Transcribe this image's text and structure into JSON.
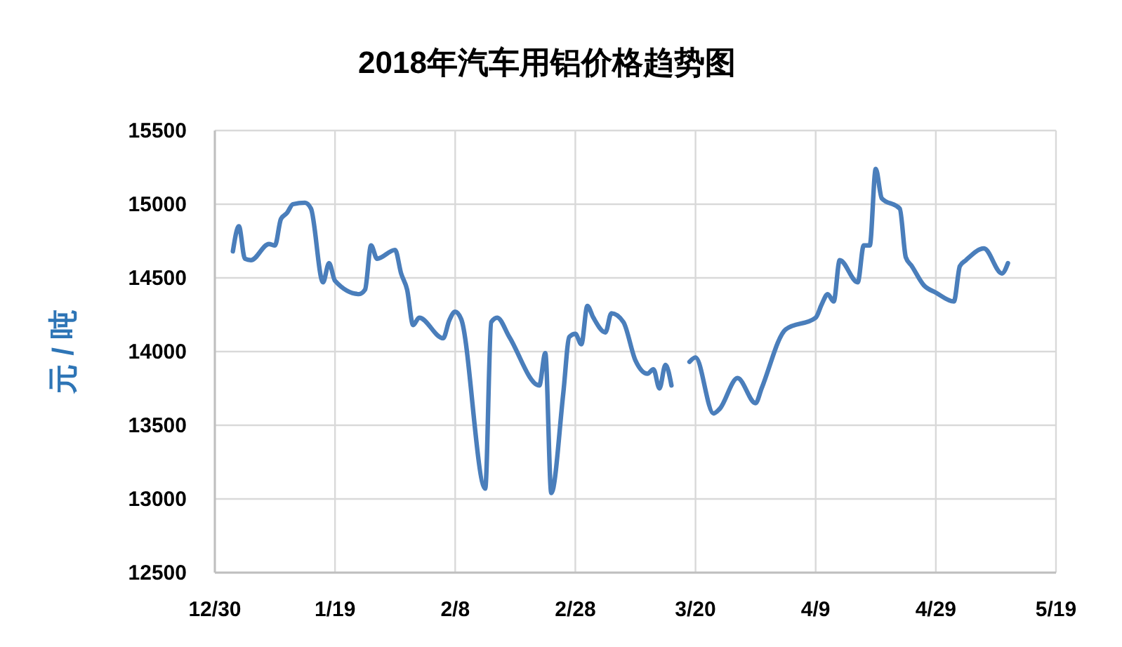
{
  "chart_data": {
    "type": "line",
    "title": "2018年汽车用铝价格趋势图",
    "ylabel": "元 / 吨",
    "x": [
      "2018-01-02",
      "2018-01-03",
      "2018-01-04",
      "2018-01-05",
      "2018-01-08",
      "2018-01-09",
      "2018-01-10",
      "2018-01-11",
      "2018-01-12",
      "2018-01-14",
      "2018-01-15",
      "2018-01-17",
      "2018-01-18",
      "2018-01-19",
      "2018-01-23",
      "2018-01-24",
      "2018-01-25",
      "2018-01-26",
      "2018-01-29",
      "2018-01-30",
      "2018-01-31",
      "2018-02-01",
      "2018-02-02",
      "2018-02-06",
      "2018-02-07",
      "2018-02-08",
      "2018-02-09",
      "2018-02-13",
      "2018-02-14",
      "2018-02-15",
      "2018-02-17",
      "2018-02-22",
      "2018-02-23",
      "2018-02-24",
      "2018-02-26",
      "2018-02-27",
      "2018-02-28",
      "2018-03-01",
      "2018-03-02",
      "2018-03-03",
      "2018-03-05",
      "2018-03-06",
      "2018-03-08",
      "2018-03-10",
      "2018-03-12",
      "2018-03-13",
      "2018-03-14",
      "2018-03-15",
      "2018-03-16",
      "2018-03-17",
      "2018-03-19",
      "2018-03-20",
      "2018-03-23",
      "2018-03-24",
      "2018-03-27",
      "2018-03-30",
      "2018-03-31",
      "2018-04-04",
      "2018-04-09",
      "2018-04-10",
      "2018-04-11",
      "2018-04-12",
      "2018-04-13",
      "2018-04-16",
      "2018-04-17",
      "2018-04-18",
      "2018-04-19",
      "2018-04-20",
      "2018-04-23",
      "2018-04-24",
      "2018-04-25",
      "2018-04-27",
      "2018-04-29",
      "2018-05-02",
      "2018-05-03",
      "2018-05-04",
      "2018-05-07",
      "2018-05-10",
      "2018-05-11"
    ],
    "series": [
      {
        "color": "#4a7ebb",
        "values": [
          14680,
          14850,
          14630,
          14620,
          14730,
          14720,
          14900,
          14940,
          15000,
          15010,
          14970,
          14470,
          14600,
          14480,
          14390,
          14420,
          14720,
          14630,
          14690,
          14530,
          14420,
          14180,
          14230,
          14090,
          14210,
          14270,
          14220,
          13070,
          14200,
          14230,
          14100,
          13770,
          13990,
          13040,
          13720,
          14100,
          14120,
          14050,
          14310,
          14230,
          14130,
          14260,
          14200,
          13940,
          13850,
          13880,
          13750,
          13910,
          13770,
          null,
          13930,
          13960,
          13580,
          13610,
          13820,
          13650,
          13750,
          14150,
          14230,
          14320,
          14390,
          14340,
          14620,
          14470,
          14720,
          14720,
          15240,
          15040,
          14970,
          14640,
          14580,
          14450,
          14400,
          14340,
          14580,
          14620,
          14700,
          14530,
          14600
        ]
      }
    ],
    "xlim": [
      "2017-12-30",
      "2018-05-19"
    ],
    "xticks": [
      {
        "value": "2017-12-30",
        "label": "12/30"
      },
      {
        "value": "2018-01-19",
        "label": "1/19"
      },
      {
        "value": "2018-02-08",
        "label": "2/8"
      },
      {
        "value": "2018-02-28",
        "label": "2/28"
      },
      {
        "value": "2018-03-20",
        "label": "3/20"
      },
      {
        "value": "2018-04-09",
        "label": "4/9"
      },
      {
        "value": "2018-04-29",
        "label": "4/29"
      },
      {
        "value": "2018-05-19",
        "label": "5/19"
      }
    ],
    "ylim": [
      12500,
      15500
    ],
    "yticks": [
      12500,
      13000,
      13500,
      14000,
      14500,
      15000,
      15500
    ],
    "grid": true,
    "marker": "none",
    "line_style": "solid"
  }
}
